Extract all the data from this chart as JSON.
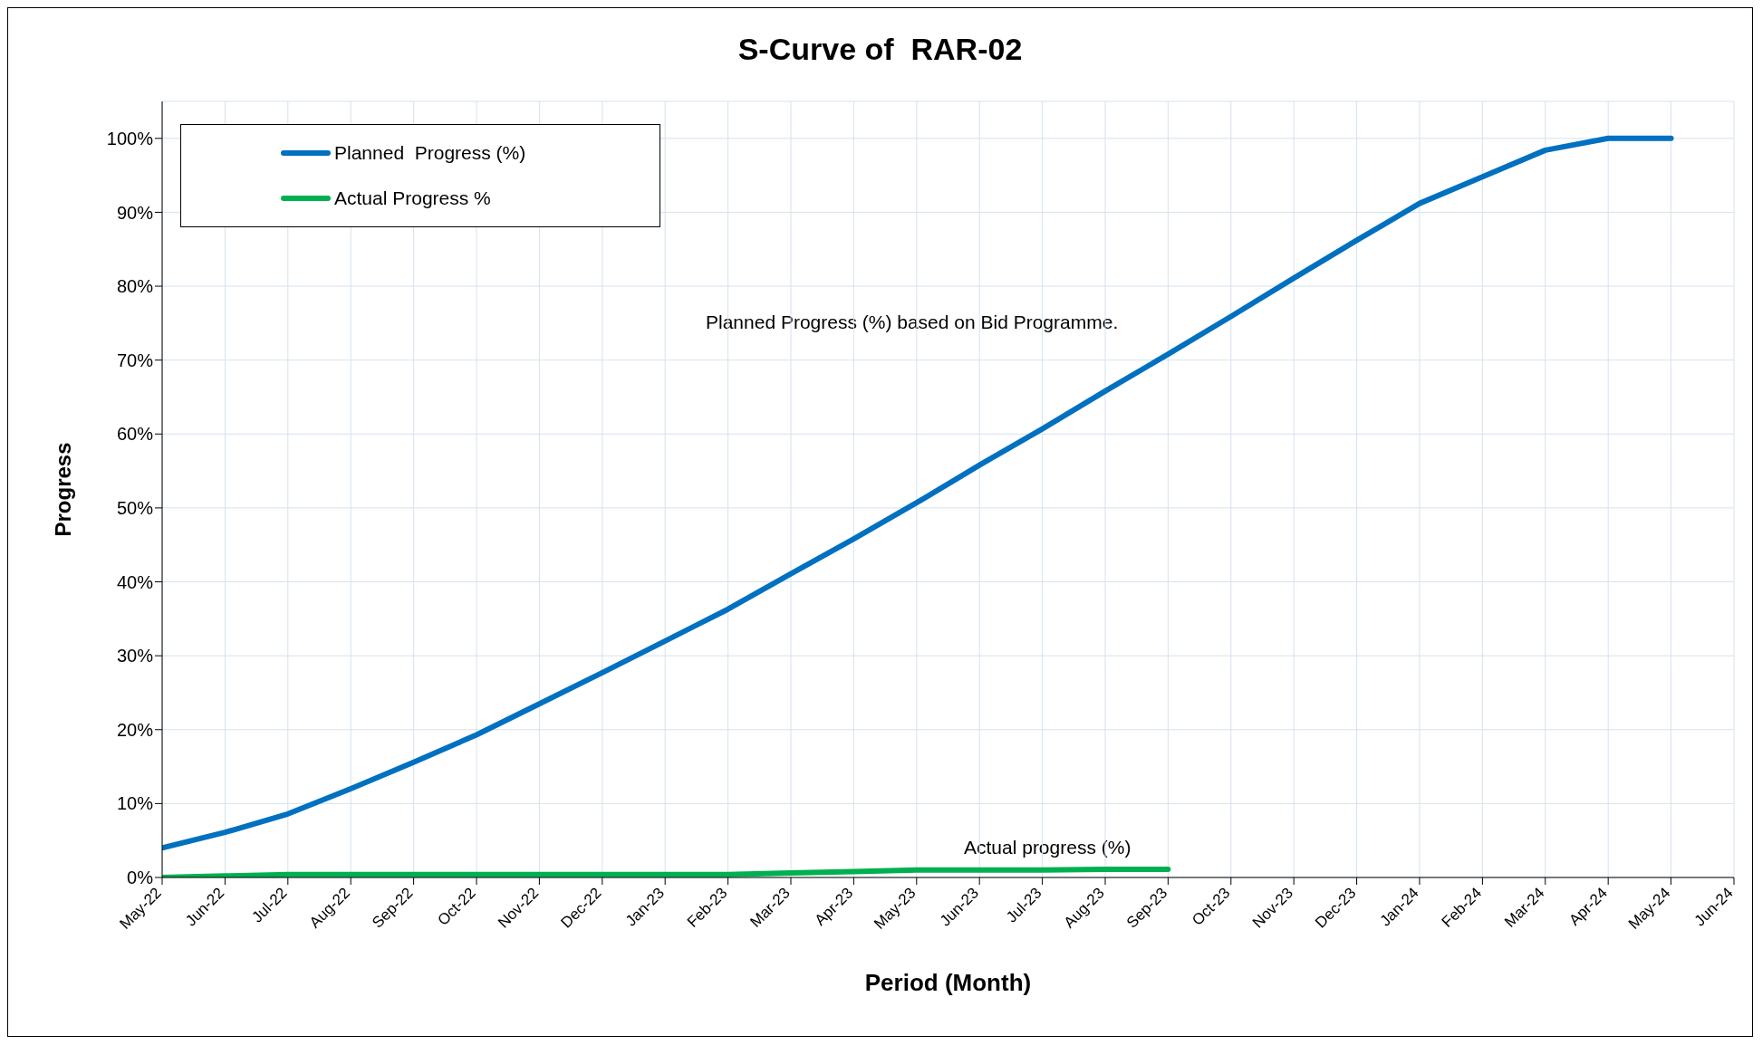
{
  "chart_data": {
    "type": "line",
    "title": "S-Curve of  RAR-02",
    "xlabel": "Period (Month)",
    "ylabel": "Progress",
    "categories": [
      "May-22",
      "Jun-22",
      "Jul-22",
      "Aug-22",
      "Sep-22",
      "Oct-22",
      "Nov-22",
      "Dec-22",
      "Jan-23",
      "Feb-23",
      "Mar-23",
      "Apr-23",
      "May-23",
      "Jun-23",
      "Jul-23",
      "Aug-23",
      "Sep-23",
      "Oct-23",
      "Nov-23",
      "Dec-23",
      "Jan-24",
      "Feb-24",
      "Mar-24",
      "Apr-24",
      "May-24",
      "Jun-24"
    ],
    "series": [
      {
        "name": "Planned  Progress (%)",
        "color": "#0070c0",
        "values": [
          4.0,
          6.1,
          8.6,
          12.0,
          15.6,
          19.3,
          23.5,
          27.7,
          32.0,
          36.3,
          41.1,
          45.8,
          50.7,
          55.8,
          60.7,
          65.8,
          70.8,
          75.9,
          81.1,
          86.2,
          91.2,
          94.8,
          98.4,
          100,
          100,
          null
        ]
      },
      {
        "name": "Actual Progress %",
        "color": "#00b050",
        "values": [
          0,
          0.2,
          0.4,
          0.4,
          0.4,
          0.4,
          0.4,
          0.4,
          0.4,
          0.4,
          0.6,
          0.8,
          1.0,
          1.0,
          1.0,
          1.1,
          1.1,
          null,
          null,
          null,
          null,
          null,
          null,
          null,
          null,
          null
        ]
      }
    ],
    "ylim": [
      0,
      105
    ],
    "yticks": [
      {
        "value": 0,
        "label": "0%"
      },
      {
        "value": 10,
        "label": "10%"
      },
      {
        "value": 20,
        "label": "20%"
      },
      {
        "value": 30,
        "label": "30%"
      },
      {
        "value": 40,
        "label": "40%"
      },
      {
        "value": 50,
        "label": "50%"
      },
      {
        "value": 60,
        "label": "60%"
      },
      {
        "value": 70,
        "label": "70%"
      },
      {
        "value": 80,
        "label": "80%"
      },
      {
        "value": 90,
        "label": "90%"
      },
      {
        "value": 100,
        "label": "100%"
      }
    ],
    "annotations": [
      "Planned Progress (%) based on Bid Programme.",
      "Actual progress (%)"
    ],
    "grid": true,
    "legend": "top left",
    "marker": "none",
    "line_style": "solid"
  }
}
